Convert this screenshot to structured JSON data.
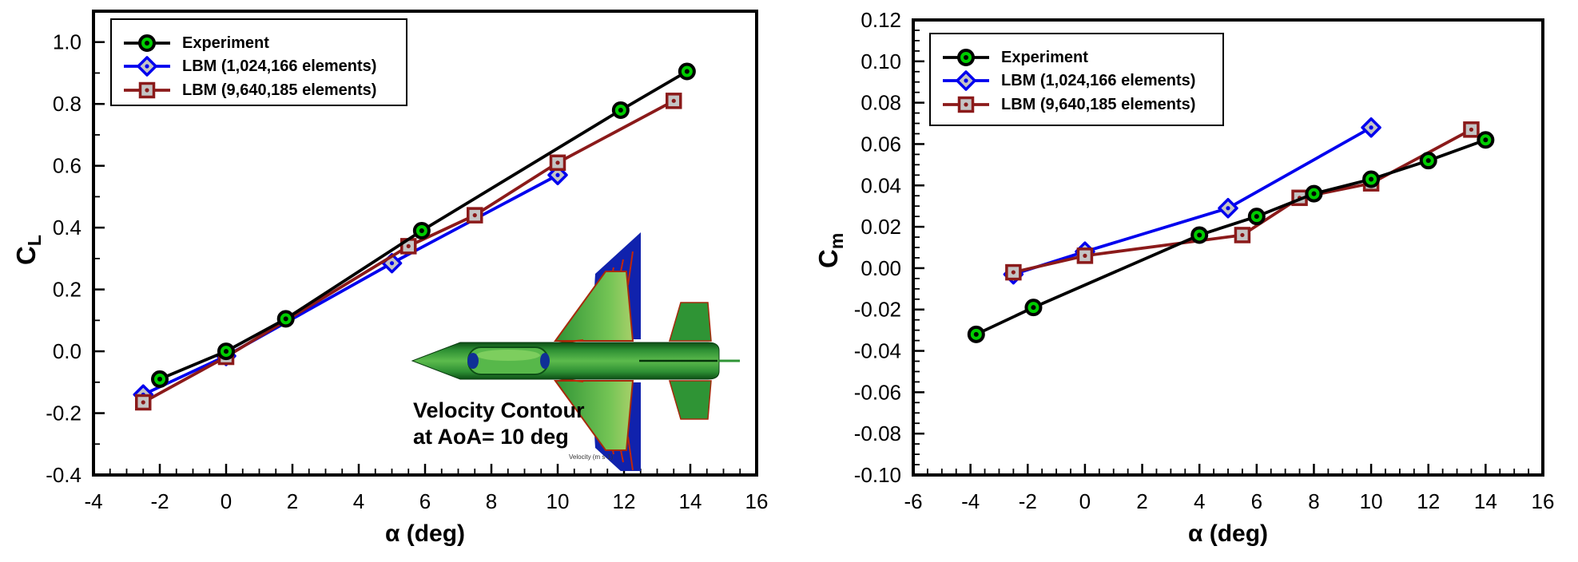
{
  "inset": {
    "caption_line1": "Velocity Contour",
    "caption_line2": "at AoA= 10 deg",
    "colorbar_label": "Velocity (m s-1)"
  },
  "colors": {
    "experiment_line": "#000000",
    "experiment_marker_fill": "#00CC00",
    "lbm_coarse_line": "#0000EE",
    "lbm_fine_line": "#8B1A1A",
    "marker_inner_fill": "#C4C4C4",
    "frame": "#000000",
    "background": "#FFFFFF"
  },
  "chart_data": [
    {
      "type": "line",
      "id": "cl_vs_alpha",
      "title": "",
      "xlabel": "α (deg)",
      "ylabel": "C",
      "ylabel_sub": "L",
      "xlim": [
        -4,
        16
      ],
      "ylim": [
        -0.4,
        1.1
      ],
      "x_major_step": 2,
      "x_minor_step": 0.5,
      "y_major_ticks": [
        1.0,
        0.8,
        0.6,
        0.4,
        0.2,
        0.0,
        -0.2,
        -0.4
      ],
      "y_minor_step": 0.1,
      "y_tick_decimals": 1,
      "grid": false,
      "legend_position": "top-left",
      "series": [
        {
          "name": "Experiment",
          "color": "#000000",
          "marker": "circle",
          "marker_fill": "#00CC00",
          "points": [
            [
              -2.0,
              -0.09
            ],
            [
              0.0,
              0.0
            ],
            [
              1.8,
              0.105
            ],
            [
              5.9,
              0.39
            ],
            [
              11.9,
              0.78
            ],
            [
              13.9,
              0.905
            ]
          ]
        },
        {
          "name": "LBM (1,024,166 elements)",
          "color": "#0000EE",
          "marker": "diamond",
          "marker_fill": "#C4C4C4",
          "points": [
            [
              -2.5,
              -0.14
            ],
            [
              0.0,
              -0.015
            ],
            [
              5.0,
              0.285
            ],
            [
              10.0,
              0.57
            ]
          ]
        },
        {
          "name": "LBM (9,640,185 elements)",
          "color": "#8B1A1A",
          "marker": "square",
          "marker_fill": "#C4C4C4",
          "points": [
            [
              -2.5,
              -0.165
            ],
            [
              0.0,
              -0.018
            ],
            [
              5.5,
              0.34
            ],
            [
              7.5,
              0.44
            ],
            [
              10.0,
              0.61
            ],
            [
              13.5,
              0.81
            ]
          ]
        }
      ]
    },
    {
      "type": "line",
      "id": "cm_vs_alpha",
      "title": "",
      "xlabel": "α (deg)",
      "ylabel": "C",
      "ylabel_sub": "m",
      "xlim": [
        -6,
        16
      ],
      "ylim": [
        -0.1,
        0.12
      ],
      "x_major_step": 2,
      "x_minor_step": 0.5,
      "y_major_ticks": [
        0.12,
        0.1,
        0.08,
        0.06,
        0.04,
        0.02,
        0.0,
        -0.02,
        -0.04,
        -0.06,
        -0.08,
        -0.1
      ],
      "y_minor_step": 0.005,
      "y_tick_decimals": 2,
      "grid": false,
      "legend_position": "top-left",
      "series": [
        {
          "name": "Experiment",
          "color": "#000000",
          "marker": "circle",
          "marker_fill": "#00CC00",
          "points": [
            [
              -3.8,
              -0.032
            ],
            [
              -1.8,
              -0.019
            ],
            [
              4.0,
              0.016
            ],
            [
              6.0,
              0.025
            ],
            [
              8.0,
              0.036
            ],
            [
              10.0,
              0.043
            ],
            [
              12.0,
              0.052
            ],
            [
              14.0,
              0.062
            ]
          ]
        },
        {
          "name": "LBM (1,024,166 elements)",
          "color": "#0000EE",
          "marker": "diamond",
          "marker_fill": "#C4C4C4",
          "points": [
            [
              -2.5,
              -0.003
            ],
            [
              0.0,
              0.008
            ],
            [
              5.0,
              0.029
            ],
            [
              10.0,
              0.068
            ]
          ]
        },
        {
          "name": "LBM (9,640,185 elements)",
          "color": "#8B1A1A",
          "marker": "square",
          "marker_fill": "#C4C4C4",
          "points": [
            [
              -2.5,
              -0.002
            ],
            [
              0.0,
              0.006
            ],
            [
              5.5,
              0.016
            ],
            [
              7.5,
              0.034
            ],
            [
              10.0,
              0.041
            ],
            [
              13.5,
              0.067
            ]
          ]
        }
      ]
    }
  ]
}
